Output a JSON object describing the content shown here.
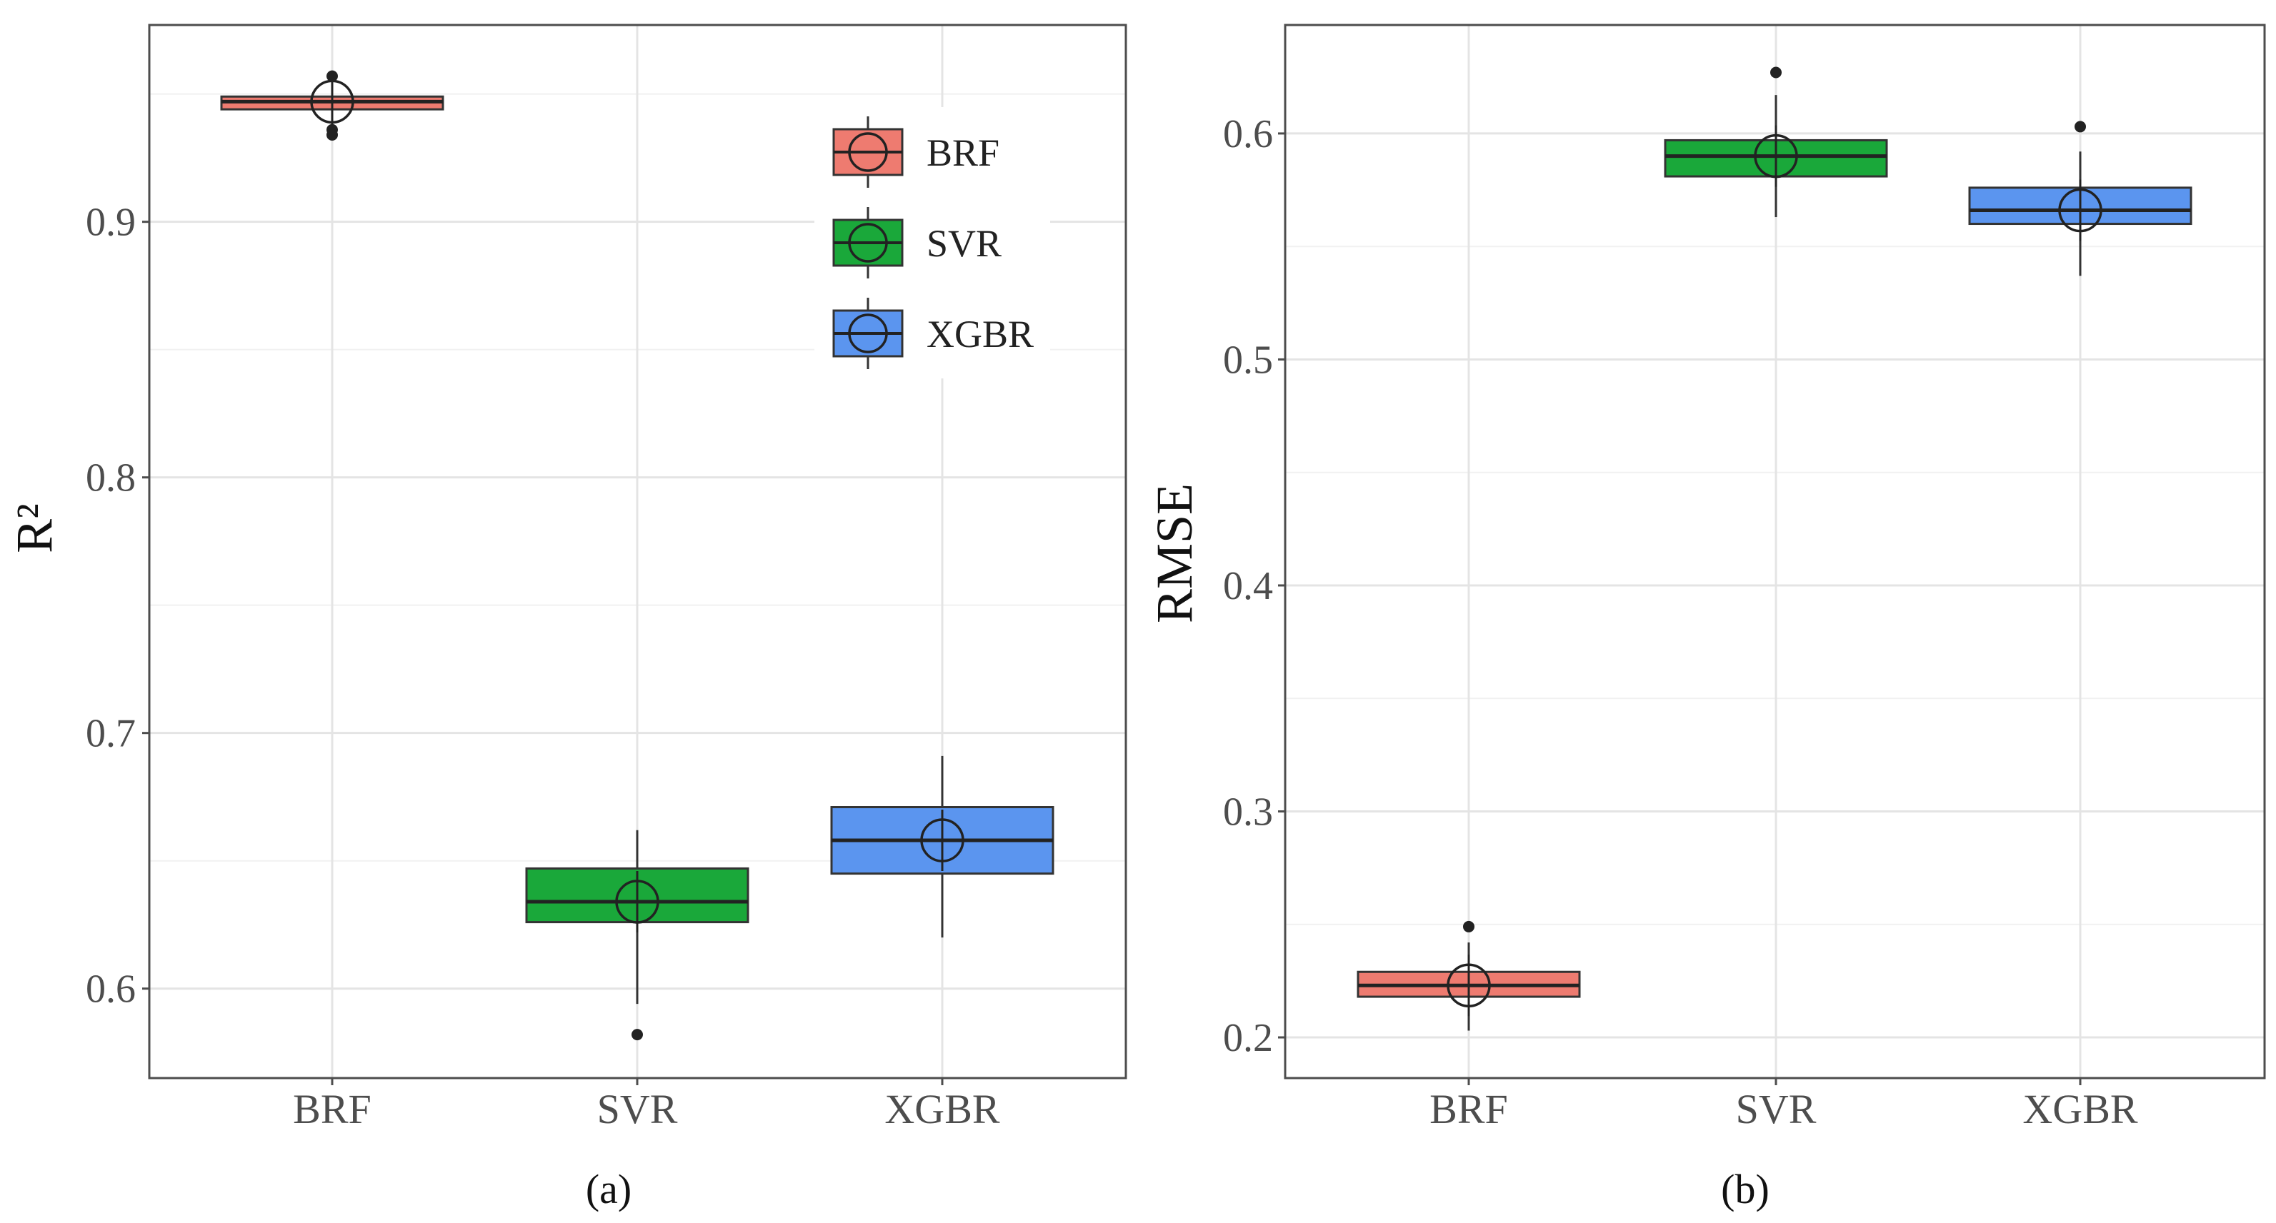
{
  "chart_data": [
    {
      "type": "box",
      "panel_label": "(a)",
      "ylabel": "R²",
      "ylim": [
        0.565,
        0.977
      ],
      "yticks": [
        0.6,
        0.7,
        0.8,
        0.9
      ],
      "ytick_labels": [
        "0.6",
        "0.7",
        "0.8",
        "0.9"
      ],
      "grid": true,
      "legend_position": "top-right",
      "categories": [
        "BRF",
        "SVR",
        "XGBR"
      ],
      "boxes": [
        {
          "name": "BRF",
          "color": "#ee7b70",
          "whisker_low": 0.943,
          "q1": 0.944,
          "median": 0.947,
          "q3": 0.949,
          "whisker_high": 0.952,
          "mean": 0.947,
          "outliers": [
            0.934,
            0.936,
            0.957
          ]
        },
        {
          "name": "SVR",
          "color": "#1aa83a",
          "whisker_low": 0.594,
          "q1": 0.626,
          "median": 0.634,
          "q3": 0.647,
          "whisker_high": 0.662,
          "mean": 0.634,
          "outliers": [
            0.582
          ]
        },
        {
          "name": "XGBR",
          "color": "#5b95ef",
          "whisker_low": 0.62,
          "q1": 0.645,
          "median": 0.658,
          "q3": 0.671,
          "whisker_high": 0.691,
          "mean": 0.658,
          "outliers": []
        }
      ],
      "legend": [
        {
          "label": "BRF",
          "color": "#ee7b70"
        },
        {
          "label": "SVR",
          "color": "#1aa83a"
        },
        {
          "label": "XGBR",
          "color": "#5b95ef"
        }
      ]
    },
    {
      "type": "box",
      "panel_label": "(b)",
      "ylabel": "RMSE",
      "ylim": [
        0.182,
        0.648
      ],
      "yticks": [
        0.2,
        0.3,
        0.4,
        0.5,
        0.6
      ],
      "ytick_labels": [
        "0.2",
        "0.3",
        "0.4",
        "0.5",
        "0.6"
      ],
      "grid": true,
      "categories": [
        "BRF",
        "SVR",
        "XGBR"
      ],
      "boxes": [
        {
          "name": "BRF",
          "color": "#ee7b70",
          "whisker_low": 0.203,
          "q1": 0.218,
          "median": 0.223,
          "q3": 0.229,
          "whisker_high": 0.242,
          "mean": 0.223,
          "outliers": [
            0.249
          ]
        },
        {
          "name": "SVR",
          "color": "#1aa83a",
          "whisker_low": 0.563,
          "q1": 0.581,
          "median": 0.59,
          "q3": 0.597,
          "whisker_high": 0.617,
          "mean": 0.59,
          "outliers": [
            0.627
          ]
        },
        {
          "name": "XGBR",
          "color": "#5b95ef",
          "whisker_low": 0.537,
          "q1": 0.56,
          "median": 0.566,
          "q3": 0.576,
          "whisker_high": 0.592,
          "mean": 0.566,
          "outliers": [
            0.603
          ]
        }
      ]
    }
  ]
}
